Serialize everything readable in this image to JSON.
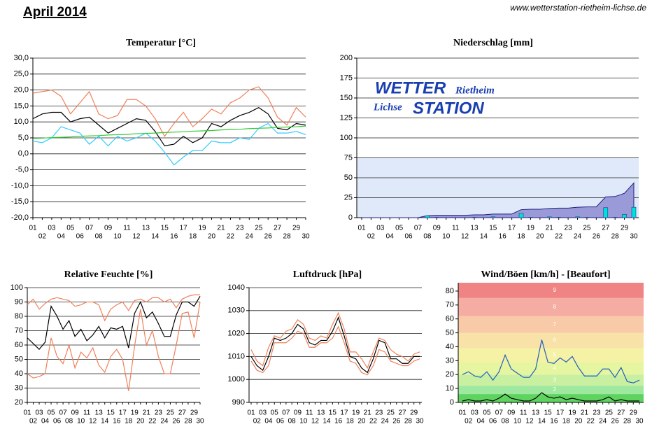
{
  "title": "April 2014",
  "source": "www.wetterstation-rietheim-lichse.de",
  "chart_data": [
    {
      "type": "line",
      "title": "Temperatur [°C]",
      "categories": [
        "01",
        "02",
        "03",
        "04",
        "05",
        "06",
        "07",
        "08",
        "09",
        "10",
        "11",
        "12",
        "13",
        "14",
        "15",
        "16",
        "17",
        "18",
        "19",
        "20",
        "21",
        "22",
        "23",
        "24",
        "25",
        "26",
        "27",
        "28",
        "29",
        "30"
      ],
      "ylim": [
        -20,
        30
      ],
      "yticks": [
        {
          "value": 30,
          "label": "30,0"
        },
        {
          "value": 25,
          "label": "25,0"
        },
        {
          "value": 20,
          "label": "20,0"
        },
        {
          "value": 15,
          "label": "15,0"
        },
        {
          "value": 10,
          "label": "10,0"
        },
        {
          "value": 5,
          "label": "5,0"
        },
        {
          "value": 0,
          "label": "0,0"
        },
        {
          "value": -5,
          "label": "-5,0"
        },
        {
          "value": -10,
          "label": "-10,0"
        },
        {
          "value": -15,
          "label": "-15,0"
        },
        {
          "value": -20,
          "label": "-20,0"
        }
      ],
      "grid": true,
      "series": [
        {
          "color": "#f0805a",
          "values": [
            19,
            19.5,
            20,
            18,
            12.5,
            16,
            19.5,
            12.5,
            11,
            12,
            17,
            17,
            15,
            11,
            5.5,
            9.5,
            13,
            8.5,
            11,
            14,
            12.5,
            16,
            17.5,
            20,
            21,
            17.5,
            11.5,
            9,
            14.5,
            11.5
          ]
        },
        {
          "color": "#33ccff",
          "values": [
            4,
            3.5,
            5,
            8.5,
            7.5,
            6.5,
            3,
            5.5,
            2.5,
            5.5,
            4,
            5,
            6.5,
            4,
            0.5,
            -3.5,
            -1,
            1,
            1,
            4,
            3.5,
            3.5,
            5,
            4.5,
            8,
            9.5,
            6.5,
            6.5,
            7,
            6
          ]
        },
        {
          "color": "#000000",
          "values": [
            11,
            12.5,
            13,
            13,
            10,
            11,
            11.5,
            9,
            6.5,
            8,
            9.5,
            11,
            10.5,
            7,
            2.5,
            3,
            5.5,
            3.5,
            5,
            9.5,
            8.5,
            10.5,
            12,
            13,
            14.5,
            12.5,
            8,
            7.5,
            9.5,
            9
          ]
        },
        {
          "color": "#33cc33",
          "values": [
            4.8,
            4.9,
            5.1,
            5.2,
            5.3,
            5.5,
            5.6,
            5.7,
            5.9,
            6.0,
            6.1,
            6.3,
            6.4,
            6.5,
            6.7,
            6.8,
            6.9,
            7.1,
            7.2,
            7.3,
            7.5,
            7.6,
            7.7,
            7.9,
            8.0,
            8.1,
            8.3,
            8.4,
            8.5,
            8.7
          ]
        }
      ]
    },
    {
      "type": "area",
      "title": "Niederschlag [mm]",
      "categories": [
        "01",
        "02",
        "03",
        "04",
        "05",
        "06",
        "07",
        "08",
        "09",
        "10",
        "11",
        "12",
        "13",
        "14",
        "15",
        "16",
        "17",
        "18",
        "19",
        "20",
        "21",
        "22",
        "23",
        "24",
        "25",
        "26",
        "27",
        "28",
        "29",
        "30"
      ],
      "ylim": [
        0,
        200
      ],
      "yticks": [
        0,
        25,
        50,
        75,
        100,
        125,
        150,
        175,
        200
      ],
      "grid": true,
      "bands": [
        {
          "from": 0,
          "to": 75,
          "color": "#dfe9f9"
        }
      ],
      "logo": [
        "WETTER",
        "Rietheim",
        "Lichse",
        "STATION"
      ],
      "series": [
        {
          "mark": "area",
          "color": "#9a9ad8",
          "values": [
            0,
            0,
            0,
            0,
            0,
            0,
            0,
            2.5,
            3,
            3,
            3,
            3,
            3.5,
            3.5,
            4.5,
            4.5,
            4.5,
            10,
            10.5,
            10.5,
            11.5,
            12,
            12,
            13,
            13.5,
            13.5,
            26,
            26.5,
            30.5,
            43.5
          ]
        },
        {
          "mark": "bar",
          "color": "#00e0e0",
          "values": [
            0,
            0,
            0,
            0,
            0,
            0,
            0,
            2.5,
            0.5,
            0,
            0,
            0,
            0.5,
            0,
            1,
            0,
            0,
            5.5,
            0.5,
            0,
            1,
            0.5,
            0,
            1,
            0.5,
            0,
            12.5,
            0.5,
            4,
            13
          ]
        }
      ]
    },
    {
      "type": "line",
      "title": "Relative Feuchte [%]",
      "categories": [
        "01",
        "02",
        "03",
        "04",
        "05",
        "06",
        "07",
        "08",
        "09",
        "10",
        "11",
        "12",
        "13",
        "14",
        "15",
        "16",
        "17",
        "18",
        "19",
        "20",
        "21",
        "22",
        "23",
        "24",
        "25",
        "26",
        "27",
        "28",
        "29",
        "30"
      ],
      "ylim": [
        20,
        100
      ],
      "yticks": [
        20,
        30,
        40,
        50,
        60,
        70,
        80,
        90,
        100
      ],
      "grid": true,
      "series": [
        {
          "color": "#f0805a",
          "values": [
            88,
            92,
            85,
            89,
            92,
            93,
            92,
            91,
            87,
            88,
            90,
            90,
            88,
            77,
            85,
            88,
            90,
            84,
            91,
            92,
            90,
            93,
            93,
            90,
            92,
            86,
            92,
            94,
            95,
            95
          ]
        },
        {
          "color": "#f0805a",
          "values": [
            40,
            37,
            38,
            40,
            65,
            52,
            47,
            60,
            44,
            55,
            51,
            58,
            46,
            41,
            52,
            57,
            50,
            28,
            59,
            85,
            60,
            70,
            52,
            40,
            40,
            60,
            82,
            83,
            65,
            90
          ]
        },
        {
          "color": "#000000",
          "values": [
            65,
            61,
            57,
            62,
            87,
            80,
            71,
            77,
            66,
            71,
            63,
            67,
            73,
            65,
            72,
            71,
            73,
            58,
            82,
            90,
            79,
            83,
            75,
            66,
            66,
            81,
            90,
            90,
            87,
            94
          ]
        }
      ]
    },
    {
      "type": "line",
      "title": "Luftdruck [hPa]",
      "categories": [
        "01",
        "02",
        "03",
        "04",
        "05",
        "06",
        "07",
        "08",
        "09",
        "10",
        "11",
        "12",
        "13",
        "14",
        "15",
        "16",
        "17",
        "18",
        "19",
        "20",
        "21",
        "22",
        "23",
        "24",
        "25",
        "26",
        "27",
        "28",
        "29",
        "30"
      ],
      "ylim": [
        990,
        1040
      ],
      "yticks": [
        990,
        1000,
        1010,
        1020,
        1030,
        1040
      ],
      "grid": true,
      "series": [
        {
          "color": "#f0805a",
          "values": [
            1013,
            1008,
            1006,
            1014,
            1019,
            1018,
            1021,
            1022,
            1026,
            1024,
            1018,
            1017,
            1019,
            1018,
            1024,
            1029,
            1022,
            1012,
            1012,
            1009,
            1005,
            1012,
            1018,
            1017,
            1013,
            1011,
            1010,
            1008,
            1011,
            1012
          ]
        },
        {
          "color": "#f0805a",
          "values": [
            1008,
            1004,
            1003,
            1006,
            1016,
            1016,
            1016,
            1018,
            1021,
            1020,
            1014,
            1014,
            1016,
            1016,
            1018,
            1023,
            1016,
            1008,
            1007,
            1003,
            1002,
            1006,
            1013,
            1012,
            1008,
            1007,
            1006,
            1006,
            1008,
            1009
          ]
        },
        {
          "color": "#000000",
          "values": [
            1010,
            1006,
            1004,
            1010,
            1018,
            1017,
            1018,
            1020,
            1024,
            1022,
            1016,
            1015,
            1017,
            1017,
            1021,
            1027,
            1019,
            1010,
            1009,
            1005,
            1003,
            1009,
            1017,
            1016,
            1009,
            1009,
            1007,
            1007,
            1010,
            1010
          ]
        }
      ]
    },
    {
      "type": "line",
      "title": "Wind/Böen [km/h] - [Beaufort]",
      "categories": [
        "01",
        "02",
        "03",
        "04",
        "05",
        "06",
        "07",
        "08",
        "09",
        "10",
        "11",
        "12",
        "13",
        "14",
        "15",
        "16",
        "17",
        "18",
        "19",
        "20",
        "21",
        "22",
        "23",
        "24",
        "25",
        "26",
        "27",
        "28",
        "29",
        "30"
      ],
      "ylim": [
        0,
        86
      ],
      "yticks": [
        0,
        10,
        20,
        30,
        40,
        50,
        60,
        70,
        80
      ],
      "grid": false,
      "bands": [
        {
          "from": 0,
          "to": 6,
          "color": "#5fd35f"
        },
        {
          "from": 6,
          "to": 12,
          "color": "#9fe89f",
          "label": "2"
        },
        {
          "from": 12,
          "to": 20,
          "color": "#c8f0a0",
          "label": "3"
        },
        {
          "from": 20,
          "to": 29,
          "color": "#e6f5a0",
          "label": "4"
        },
        {
          "from": 29,
          "to": 39,
          "color": "#f5f2a5",
          "label": "5"
        },
        {
          "from": 39,
          "to": 50,
          "color": "#f8e2a8",
          "label": "6"
        },
        {
          "from": 50,
          "to": 62,
          "color": "#f8caa8",
          "label": "7"
        },
        {
          "from": 62,
          "to": 75,
          "color": "#f5aca2",
          "label": "8"
        },
        {
          "from": 75,
          "to": 86,
          "color": "#f08484",
          "label": "9"
        }
      ],
      "series": [
        {
          "color": "#1f5fbf",
          "values": [
            20,
            22,
            19,
            18,
            22,
            16,
            22,
            34,
            24,
            21,
            18,
            18,
            24,
            45,
            29,
            28,
            32,
            29,
            33,
            25,
            19,
            19,
            19,
            24,
            24,
            18,
            25,
            15,
            14,
            16
          ]
        },
        {
          "color": "#000000",
          "values": [
            1,
            2,
            1,
            1,
            2,
            1,
            3,
            6,
            3,
            2,
            1,
            1,
            3,
            7,
            4,
            3,
            4,
            2,
            3,
            2,
            1,
            1,
            1,
            2,
            4,
            1,
            2,
            1,
            1,
            1
          ]
        }
      ]
    }
  ]
}
